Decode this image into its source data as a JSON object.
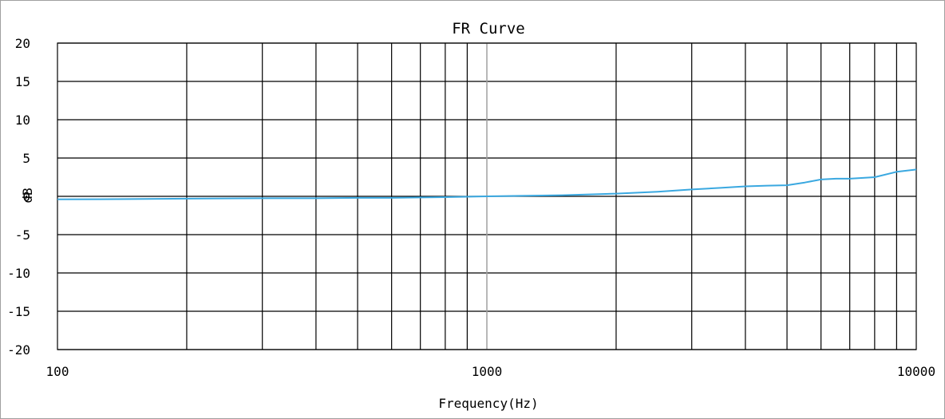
{
  "chart_data": {
    "type": "line",
    "title": "FR Curve",
    "xlabel": "Frequency(Hz)",
    "ylabel": "dB",
    "x_scale": "log",
    "xlim": [
      100,
      10000
    ],
    "ylim": [
      -20,
      20
    ],
    "x_tick_labels": [
      "100",
      "1000",
      "10000"
    ],
    "x_tick_values": [
      100,
      1000,
      10000
    ],
    "y_tick_labels": [
      "20",
      "15",
      "10",
      "5",
      "0",
      "-5",
      "-10",
      "-15",
      "-20"
    ],
    "y_tick_values": [
      20,
      15,
      10,
      5,
      0,
      -5,
      -10,
      -15,
      -20
    ],
    "grid": true,
    "legend": "none",
    "series": [
      {
        "color": "#3aa8e0",
        "x": [
          100,
          150,
          200,
          300,
          400,
          500,
          600,
          700,
          800,
          1000,
          1500,
          2000,
          2500,
          3000,
          3500,
          4000,
          4500,
          5000,
          5500,
          6000,
          6500,
          7000,
          8000,
          9000,
          10000
        ],
        "y": [
          -0.4,
          -0.35,
          -0.3,
          -0.25,
          -0.25,
          -0.2,
          -0.2,
          -0.15,
          -0.1,
          0.0,
          0.15,
          0.35,
          0.6,
          0.9,
          1.1,
          1.3,
          1.4,
          1.45,
          1.8,
          2.2,
          2.3,
          2.3,
          2.5,
          3.2,
          3.5
        ]
      }
    ]
  },
  "colors": {
    "grid": "#000000",
    "center_grid": "#a0a0a0",
    "frame": "#a0a0a0"
  }
}
